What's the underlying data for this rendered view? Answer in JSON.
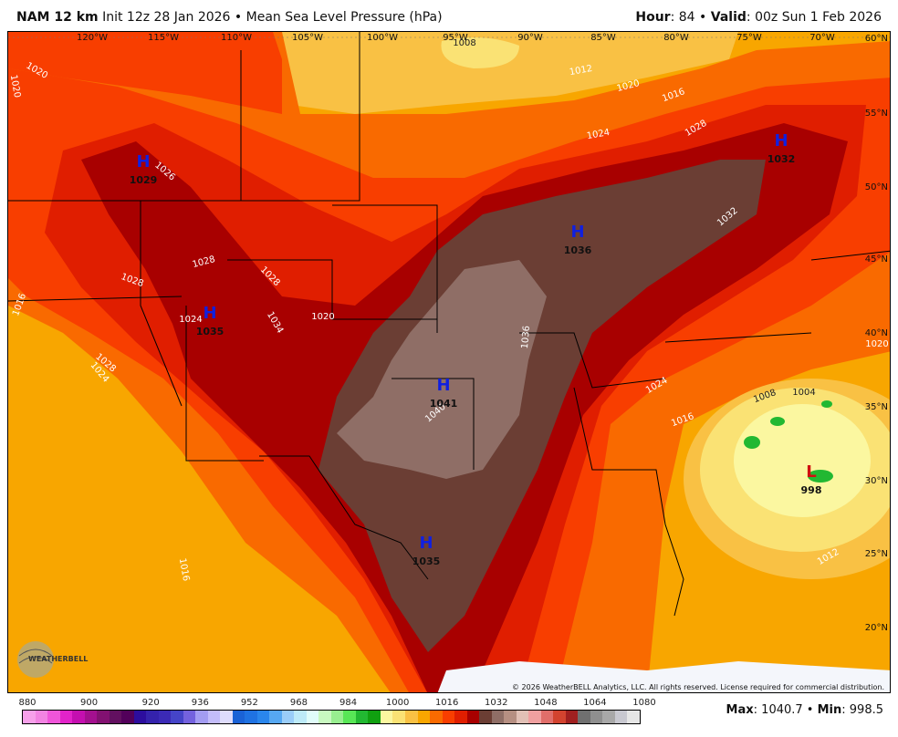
{
  "header": {
    "model": "NAM 12 km",
    "init": "Init 12z 28 Jan 2026",
    "sep": "•",
    "field": "Mean Sea Level Pressure (hPa)",
    "hour_label": "Hour",
    "hour": "84",
    "valid_label": "Valid",
    "valid": "00z Sun 1 Feb 2026"
  },
  "map": {
    "lon_labels": [
      "120°W",
      "115°W",
      "110°W",
      "105°W",
      "100°W",
      "95°W",
      "90°W",
      "85°W",
      "80°W",
      "75°W",
      "70°W"
    ],
    "lat_labels": [
      "60°N",
      "55°N",
      "50°N",
      "45°N",
      "40°N",
      "35°N",
      "30°N",
      "25°N",
      "20°N"
    ],
    "centers": [
      {
        "type": "H",
        "value": "1029"
      },
      {
        "type": "H",
        "value": "1035"
      },
      {
        "type": "H",
        "value": "1041"
      },
      {
        "type": "H",
        "value": "1036"
      },
      {
        "type": "H",
        "value": "1032"
      },
      {
        "type": "H",
        "value": "1035"
      },
      {
        "type": "L",
        "value": "998"
      }
    ],
    "contour_labels": [
      "1020",
      "1020",
      "1016",
      "1026",
      "1028",
      "1028",
      "1028",
      "1034",
      "1024",
      "1020",
      "1028",
      "1024",
      "1040",
      "1036",
      "1032",
      "1028",
      "1024",
      "1020",
      "1016",
      "1012",
      "1008",
      "1024",
      "1016",
      "1008",
      "1004",
      "1012",
      "1016",
      "1020"
    ],
    "copyright": "© 2026 WeatherBELL Analytics, LLC. All rights reserved. License required for commercial distribution.",
    "logo_text": "WEATHERBELL"
  },
  "colorbar": {
    "labels": [
      "880",
      "900",
      "920",
      "936",
      "952",
      "968",
      "984",
      "1000",
      "1016",
      "1032",
      "1048",
      "1064",
      "1080"
    ],
    "colors": [
      "#f7a0ea",
      "#f283e2",
      "#f055da",
      "#e223c9",
      "#c40fb0",
      "#a3108f",
      "#821171",
      "#621060",
      "#52005a",
      "#2c0d9e",
      "#3422ac",
      "#3b2ab6",
      "#4544c8",
      "#7462de",
      "#a39cf2",
      "#c3bcfa",
      "#dedcfc",
      "#1a62d6",
      "#1f72e2",
      "#2a86ec",
      "#56a8f2",
      "#9acdf8",
      "#bdeaf8",
      "#e0fcfa",
      "#c8f8c0",
      "#98ee90",
      "#58e656",
      "#22b832",
      "#10a010",
      "#fbf7a0",
      "#fae274",
      "#f9c144",
      "#f8a600",
      "#f96a00",
      "#f83e00",
      "#e01e00",
      "#a80000",
      "#6b3e34",
      "#8f6e66",
      "#b68f82",
      "#e1c0b6",
      "#f0a0a0",
      "#e06e6a",
      "#d2432f",
      "#a02020",
      "#707070",
      "#8f8f8f",
      "#a8a8a8",
      "#c8c8d0",
      "#e6e6e6"
    ],
    "max_label": "Max",
    "max": "1040.7",
    "min_label": "Min",
    "min": "998.5"
  }
}
